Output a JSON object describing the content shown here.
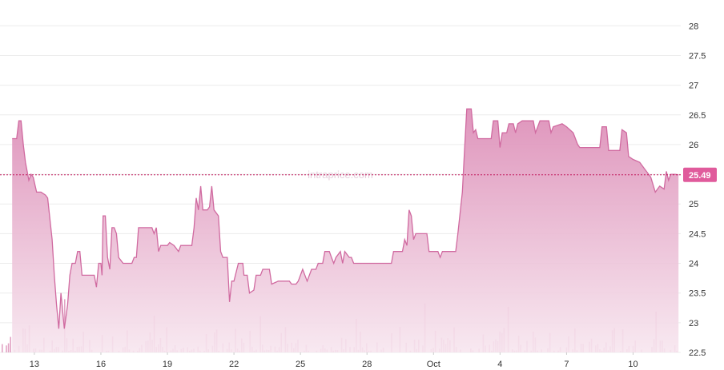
{
  "watermark": "intraprice.com",
  "chart_data": {
    "type": "area",
    "title": "",
    "xlabel": "",
    "ylabel": "",
    "ylim": [
      22.5,
      28.3
    ],
    "y_ticks": [
      "22.5",
      "23",
      "23.5",
      "24",
      "24.5",
      "25",
      "25.5",
      "26",
      "26.5",
      "27",
      "27.5",
      "28"
    ],
    "x_ticks": [
      {
        "label": "13",
        "day": 13
      },
      {
        "label": "16",
        "day": 16
      },
      {
        "label": "19",
        "day": 19
      },
      {
        "label": "22",
        "day": 22
      },
      {
        "label": "25",
        "day": 25
      },
      {
        "label": "28",
        "day": 28
      },
      {
        "label": "Oct",
        "day": 31
      },
      {
        "label": "4",
        "day": 34
      },
      {
        "label": "7",
        "day": 37
      },
      {
        "label": "10",
        "day": 40
      }
    ],
    "grid": true,
    "last_value": 25.49,
    "last_value_label": "25.49",
    "colors": {
      "line": "#d06aa0",
      "fill_top": "#dd8fb8",
      "fill_bottom": "#f7e6ef",
      "volume": "#e2a3c4",
      "grid": "#ececec",
      "last_line": "#c2185b",
      "last_label_bg": "#e05b9c"
    },
    "series": [
      {
        "points": [
          [
            12.0,
            26.1
          ],
          [
            12.2,
            26.1
          ],
          [
            12.3,
            26.4
          ],
          [
            12.4,
            26.4
          ],
          [
            12.5,
            26.0
          ],
          [
            12.6,
            25.7
          ],
          [
            12.75,
            25.4
          ],
          [
            12.85,
            25.5
          ],
          [
            12.95,
            25.45
          ],
          [
            13.1,
            25.2
          ],
          [
            13.3,
            25.2
          ],
          [
            13.5,
            25.15
          ],
          [
            13.6,
            25.1
          ],
          [
            13.8,
            24.4
          ],
          [
            13.9,
            23.8
          ],
          [
            14.0,
            23.3
          ],
          [
            14.1,
            22.9
          ],
          [
            14.2,
            23.5
          ],
          [
            14.35,
            22.9
          ],
          [
            14.5,
            23.3
          ],
          [
            14.6,
            23.8
          ],
          [
            14.7,
            24.0
          ],
          [
            14.85,
            24.0
          ],
          [
            14.95,
            24.2
          ],
          [
            15.05,
            24.2
          ],
          [
            15.15,
            23.8
          ],
          [
            15.7,
            23.8
          ],
          [
            15.8,
            23.6
          ],
          [
            15.9,
            24.0
          ],
          [
            16.0,
            24.0
          ],
          [
            16.05,
            23.8
          ],
          [
            16.1,
            24.8
          ],
          [
            16.2,
            24.8
          ],
          [
            16.3,
            24.1
          ],
          [
            16.4,
            23.9
          ],
          [
            16.5,
            24.6
          ],
          [
            16.6,
            24.6
          ],
          [
            16.7,
            24.5
          ],
          [
            16.8,
            24.1
          ],
          [
            16.9,
            24.05
          ],
          [
            17.0,
            24.0
          ],
          [
            17.3,
            24.0
          ],
          [
            17.4,
            24.0
          ],
          [
            17.5,
            24.1
          ],
          [
            17.6,
            24.1
          ],
          [
            17.7,
            24.6
          ],
          [
            18.3,
            24.6
          ],
          [
            18.4,
            24.5
          ],
          [
            18.5,
            24.6
          ],
          [
            18.6,
            24.2
          ],
          [
            18.7,
            24.3
          ],
          [
            19.0,
            24.3
          ],
          [
            19.1,
            24.35
          ],
          [
            19.3,
            24.3
          ],
          [
            19.5,
            24.2
          ],
          [
            19.6,
            24.3
          ],
          [
            20.1,
            24.3
          ],
          [
            20.2,
            24.6
          ],
          [
            20.3,
            25.1
          ],
          [
            20.4,
            24.9
          ],
          [
            20.5,
            25.3
          ],
          [
            20.6,
            24.9
          ],
          [
            20.8,
            24.9
          ],
          [
            20.9,
            24.95
          ],
          [
            21.0,
            25.3
          ],
          [
            21.1,
            24.9
          ],
          [
            21.3,
            24.8
          ],
          [
            21.4,
            24.2
          ],
          [
            21.5,
            24.1
          ],
          [
            21.7,
            24.1
          ],
          [
            21.8,
            23.35
          ],
          [
            21.9,
            23.7
          ],
          [
            22.0,
            23.7
          ],
          [
            22.2,
            24.0
          ],
          [
            22.4,
            24.0
          ],
          [
            22.45,
            23.8
          ],
          [
            22.6,
            23.8
          ],
          [
            22.7,
            23.5
          ],
          [
            22.9,
            23.55
          ],
          [
            23.0,
            23.8
          ],
          [
            23.2,
            23.8
          ],
          [
            23.3,
            23.9
          ],
          [
            23.6,
            23.9
          ],
          [
            23.7,
            23.65
          ],
          [
            24.0,
            23.7
          ],
          [
            24.5,
            23.7
          ],
          [
            24.6,
            23.65
          ],
          [
            24.8,
            23.65
          ],
          [
            24.9,
            23.7
          ],
          [
            25.1,
            23.9
          ],
          [
            25.3,
            23.7
          ],
          [
            25.5,
            23.9
          ],
          [
            25.7,
            23.9
          ],
          [
            25.8,
            24.0
          ],
          [
            26.0,
            24.0
          ],
          [
            26.1,
            24.2
          ],
          [
            26.3,
            24.2
          ],
          [
            26.4,
            24.1
          ],
          [
            26.5,
            24.0
          ],
          [
            26.6,
            24.1
          ],
          [
            26.8,
            24.2
          ],
          [
            26.9,
            24.0
          ],
          [
            27.0,
            24.2
          ],
          [
            27.2,
            24.1
          ],
          [
            27.3,
            24.1
          ],
          [
            27.4,
            24.0
          ],
          [
            28.0,
            24.0
          ],
          [
            29.1,
            24.0
          ],
          [
            29.2,
            24.2
          ],
          [
            29.6,
            24.2
          ],
          [
            29.7,
            24.4
          ],
          [
            29.8,
            24.3
          ],
          [
            29.9,
            24.9
          ],
          [
            30.0,
            24.8
          ],
          [
            30.1,
            24.4
          ],
          [
            30.2,
            24.5
          ],
          [
            30.7,
            24.5
          ],
          [
            30.8,
            24.2
          ],
          [
            31.2,
            24.2
          ],
          [
            31.3,
            24.1
          ],
          [
            31.4,
            24.2
          ],
          [
            32.0,
            24.2
          ],
          [
            32.1,
            24.5
          ],
          [
            32.3,
            25.2
          ],
          [
            32.4,
            25.9
          ],
          [
            32.5,
            26.6
          ],
          [
            32.7,
            26.6
          ],
          [
            32.8,
            26.2
          ],
          [
            32.9,
            26.25
          ],
          [
            33.0,
            26.1
          ],
          [
            33.6,
            26.1
          ],
          [
            33.7,
            26.4
          ],
          [
            33.9,
            26.4
          ],
          [
            34.0,
            25.95
          ],
          [
            34.1,
            26.2
          ],
          [
            34.3,
            26.2
          ],
          [
            34.4,
            26.35
          ],
          [
            34.6,
            26.35
          ],
          [
            34.7,
            26.2
          ],
          [
            34.8,
            26.35
          ],
          [
            35.0,
            26.4
          ],
          [
            35.5,
            26.4
          ],
          [
            35.6,
            26.2
          ],
          [
            35.8,
            26.4
          ],
          [
            36.2,
            26.4
          ],
          [
            36.3,
            26.2
          ],
          [
            36.4,
            26.3
          ],
          [
            36.8,
            26.35
          ],
          [
            37.0,
            26.3
          ],
          [
            37.3,
            26.2
          ],
          [
            37.5,
            26.0
          ],
          [
            37.6,
            25.95
          ],
          [
            38.5,
            25.95
          ],
          [
            38.6,
            26.3
          ],
          [
            38.8,
            26.3
          ],
          [
            38.9,
            25.9
          ],
          [
            39.4,
            25.9
          ],
          [
            39.5,
            26.25
          ],
          [
            39.7,
            26.2
          ],
          [
            39.8,
            25.8
          ],
          [
            40.0,
            25.75
          ],
          [
            40.3,
            25.7
          ],
          [
            40.5,
            25.6
          ],
          [
            40.7,
            25.5
          ],
          [
            40.8,
            25.45
          ],
          [
            41.0,
            25.2
          ],
          [
            41.2,
            25.3
          ],
          [
            41.4,
            25.25
          ],
          [
            41.5,
            25.55
          ],
          [
            41.6,
            25.4
          ],
          [
            41.7,
            25.5
          ],
          [
            41.9,
            25.5
          ],
          [
            42.05,
            25.49
          ]
        ]
      }
    ]
  }
}
